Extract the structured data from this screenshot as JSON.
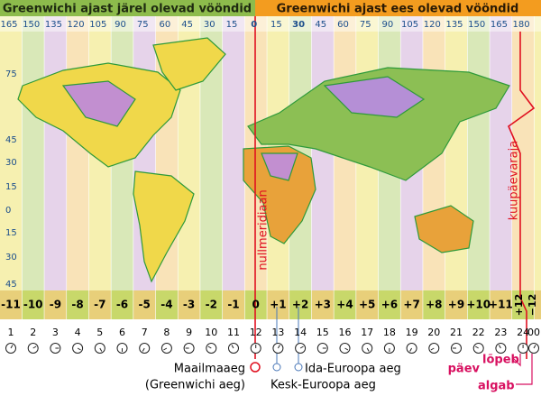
{
  "header": {
    "left": "Greenwichi ajast järel olevad vööndid",
    "right": "Greenwichi ajast ees olevad vööndid"
  },
  "longitudes": [
    "165",
    "150",
    "135",
    "120",
    "105",
    "90",
    "75",
    "60",
    "45",
    "30",
    "15",
    "0",
    "15",
    "30",
    "45",
    "60",
    "75",
    "90",
    "105",
    "120",
    "135",
    "150",
    "165",
    "180"
  ],
  "latitudes": [
    "75",
    "45",
    "30",
    "15",
    "0",
    "15",
    "30",
    "45"
  ],
  "zones": [
    "-11",
    "-10",
    "-9",
    "-8",
    "-7",
    "-6",
    "-5",
    "-4",
    "-3",
    "-2",
    "-1",
    "0",
    "+1",
    "+2",
    "+3",
    "+4",
    "+5",
    "+6",
    "+7",
    "+8",
    "+9",
    "+10",
    "+11",
    "+12",
    "−12"
  ],
  "hours": [
    "1",
    "2",
    "3",
    "4",
    "5",
    "6",
    "7",
    "8",
    "9",
    "10",
    "11",
    "12",
    "13",
    "14",
    "15",
    "16",
    "17",
    "18",
    "19",
    "20",
    "21",
    "22",
    "23",
    "24",
    "00"
  ],
  "labels": {
    "prime_meridian": "nullmeridiaan",
    "date_line": "kuupäevaraja",
    "utc_1": "Maailmaaeg",
    "utc_2": "(Greenwichi aeg)",
    "eet": "Ida-Euroopa aeg",
    "cet": "Kesk-Euroopa aeg",
    "day": "päev",
    "ends": "lõpeb",
    "begins": "algab"
  }
}
